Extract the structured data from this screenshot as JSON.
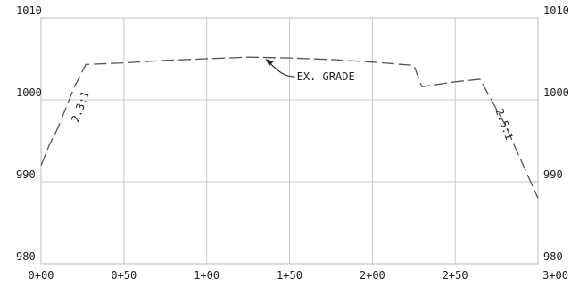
{
  "chart_data": {
    "type": "line",
    "x_ticks": [
      "0+00",
      "0+50",
      "1+00",
      "1+50",
      "2+00",
      "2+50",
      "3+00"
    ],
    "x_range": [
      0,
      300
    ],
    "y_ticks": [
      "980",
      "990",
      "1000",
      "1010"
    ],
    "y_range": [
      980,
      1010
    ],
    "grid": true,
    "series": [
      {
        "x": [
          0,
          5,
          10,
          20,
          27,
          50,
          75,
          100,
          125,
          150,
          175,
          200,
          225,
          230,
          250,
          265,
          280,
          300
        ],
        "y": [
          992,
          994.5,
          996.5,
          1001.5,
          1004.3,
          1004.5,
          1004.8,
          1005.0,
          1005.2,
          1005.1,
          1004.9,
          1004.6,
          1004.2,
          1001.6,
          1002.2,
          1002.5,
          997.0,
          988.0
        ]
      }
    ],
    "annotations": [
      {
        "text": "EX. GRADE",
        "x": 135,
        "y": 1005.1
      },
      {
        "text": "2.3:1",
        "x": 15,
        "y": 999,
        "rotate": -70
      },
      {
        "text": "2.5:1",
        "x": 283,
        "y": 996,
        "rotate": 70
      }
    ]
  }
}
